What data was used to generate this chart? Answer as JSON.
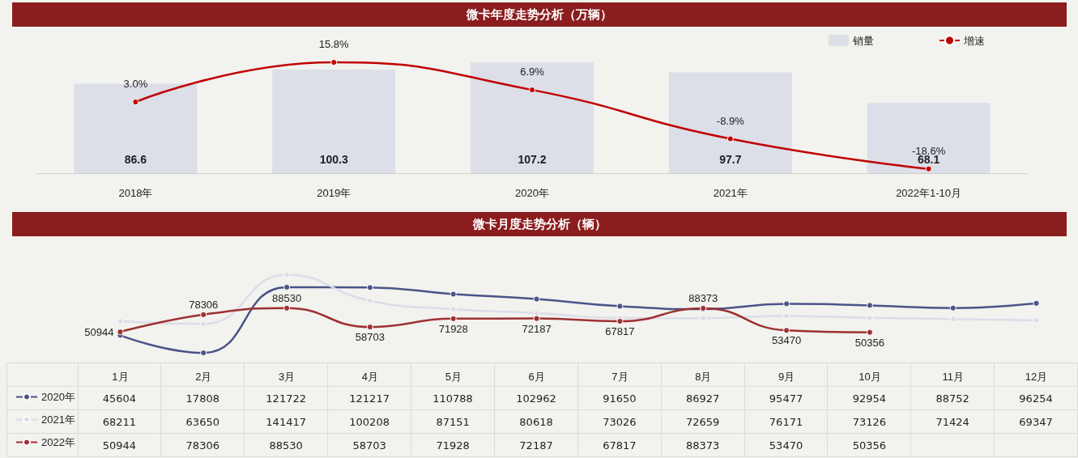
{
  "chart_data": [
    {
      "type": "bar",
      "title": "微卡年度走势分析（万辆）",
      "categories": [
        "2018年",
        "2019年",
        "2020年",
        "2021年",
        "2022年1-10月"
      ],
      "legend": "top right",
      "marker": "circle",
      "series": [
        {
          "name": "销量",
          "color": "#dcdee8",
          "values": [
            86.6,
            100.3,
            107.2,
            97.7,
            68.1
          ],
          "value_labels": [
            "86.6",
            "100.3",
            "107.2",
            "97.7",
            "68.1"
          ]
        },
        {
          "name": "增速",
          "type": "line",
          "axis": "y2",
          "color": "#c00000",
          "values": [
            3.0,
            15.8,
            6.9,
            -8.9,
            -18.6
          ],
          "value_labels": [
            "3.0%",
            "15.8%",
            "6.9%",
            "-8.9%",
            "-18.6%"
          ]
        }
      ]
    },
    {
      "type": "line",
      "title": "微卡月度走势分析（辆）",
      "categories": [
        "1月",
        "2月",
        "3月",
        "4月",
        "5月",
        "6月",
        "7月",
        "8月",
        "9月",
        "10月",
        "11月",
        "12月"
      ],
      "legend": "bottom left",
      "marker": "circle",
      "data_labels": true,
      "annotations": [
        {
          "text": "50944",
          "x": "1月",
          "y": 50944
        },
        {
          "text": "78306",
          "x": "2月",
          "y": 78306
        },
        {
          "text": "88530",
          "x": "3月",
          "y": 88530
        },
        {
          "text": "58703",
          "x": "4月",
          "y": 58703
        },
        {
          "text": "71928",
          "x": "5月",
          "y": 71928
        },
        {
          "text": "72187",
          "x": "6月",
          "y": 72187
        },
        {
          "text": "67817",
          "x": "7月",
          "y": 67817
        },
        {
          "text": "88373",
          "x": "8月",
          "y": 88373
        },
        {
          "text": "53470",
          "x": "9月",
          "y": 53470
        },
        {
          "text": "50356",
          "x": "10月",
          "y": 50356
        }
      ],
      "series": [
        {
          "name": "2020年",
          "color": "#4b5388",
          "values": [
            45604,
            17808,
            121722,
            121217,
            110788,
            102962,
            91650,
            86927,
            95477,
            92954,
            88752,
            96254
          ]
        },
        {
          "name": "2021年",
          "color": "#dcdde8",
          "values": [
            68211,
            63650,
            141417,
            100208,
            87151,
            80618,
            73026,
            72659,
            76171,
            73126,
            71424,
            69347
          ]
        },
        {
          "name": "2022年",
          "color": "#9e3033",
          "values": [
            50944,
            78306,
            88530,
            58703,
            71928,
            72187,
            67817,
            88373,
            53470,
            50356,
            null,
            null
          ]
        }
      ]
    }
  ]
}
